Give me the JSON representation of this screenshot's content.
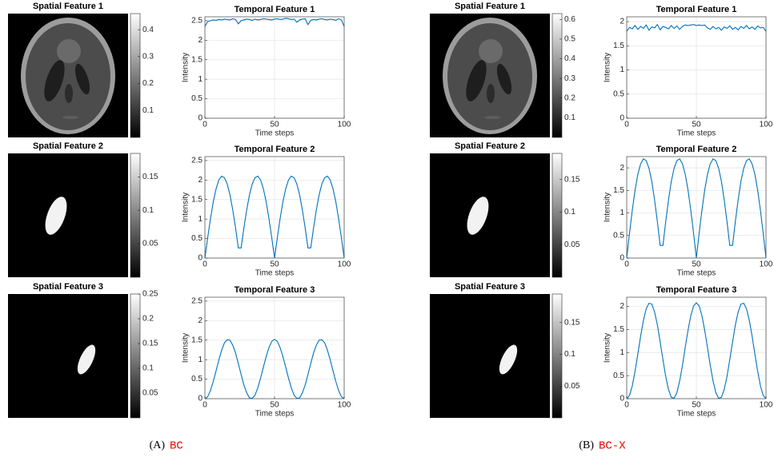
{
  "chart_data": [
    {
      "type": "image",
      "title": "Spatial Feature 1",
      "clim": [
        0,
        0.46
      ],
      "colorbar_ticks": [
        0.1,
        0.2,
        0.3,
        0.4
      ]
    },
    {
      "type": "line",
      "title": "Temporal Feature 1",
      "xlabel": "Time steps",
      "ylabel": "Intensity",
      "x": [
        0,
        2,
        4,
        6,
        8,
        10,
        12,
        14,
        16,
        18,
        20,
        22,
        24,
        26,
        28,
        30,
        32,
        34,
        36,
        38,
        40,
        42,
        44,
        46,
        48,
        50,
        52,
        54,
        56,
        58,
        60,
        62,
        64,
        66,
        68,
        70,
        72,
        74,
        76,
        78,
        80,
        82,
        84,
        86,
        88,
        90,
        92,
        94,
        96,
        98,
        100
      ],
      "series": [
        {
          "color": "#0072bd",
          "values": [
            2.35,
            2.48,
            2.5,
            2.52,
            2.51,
            2.53,
            2.52,
            2.54,
            2.53,
            2.52,
            2.55,
            2.53,
            2.42,
            2.5,
            2.52,
            2.54,
            2.53,
            2.51,
            2.54,
            2.52,
            2.53,
            2.55,
            2.54,
            2.53,
            2.52,
            2.54,
            2.55,
            2.53,
            2.54,
            2.56,
            2.55,
            2.53,
            2.54,
            2.46,
            2.52,
            2.54,
            2.55,
            2.4,
            2.51,
            2.53,
            2.52,
            2.54,
            2.55,
            2.53,
            2.52,
            2.54,
            2.53,
            2.51,
            2.55,
            2.52,
            2.35
          ]
        }
      ],
      "xlim": [
        0,
        100
      ],
      "ylim": [
        0,
        2.6
      ],
      "xticks": [
        0,
        50,
        100
      ],
      "yticks": [
        0,
        0.5,
        1,
        1.5,
        2,
        2.5
      ],
      "grid": true
    },
    {
      "type": "image",
      "title": "Spatial Feature 2",
      "clim": [
        0,
        0.185
      ],
      "colorbar_ticks": [
        0.05,
        0.1,
        0.15
      ]
    },
    {
      "type": "line",
      "title": "Temporal Feature 2",
      "xlabel": "Time steps",
      "ylabel": "Intensity",
      "x": [
        0,
        2,
        4,
        6,
        8,
        10,
        12,
        14,
        16,
        18,
        20,
        22,
        24,
        26,
        28,
        30,
        32,
        34,
        36,
        38,
        40,
        42,
        44,
        46,
        48,
        50,
        52,
        54,
        56,
        58,
        60,
        62,
        64,
        66,
        68,
        70,
        72,
        74,
        76,
        78,
        80,
        82,
        84,
        86,
        88,
        90,
        92,
        94,
        96,
        98,
        100
      ],
      "series": [
        {
          "color": "#0072bd",
          "values": [
            0,
            0.52,
            1.01,
            1.44,
            1.77,
            2.0,
            2.1,
            2.06,
            1.9,
            1.62,
            1.23,
            0.77,
            0.26,
            0.26,
            0.77,
            1.23,
            1.62,
            1.9,
            2.06,
            2.1,
            2.0,
            1.77,
            1.44,
            1.01,
            0.52,
            0,
            0.52,
            1.01,
            1.44,
            1.77,
            2.0,
            2.1,
            2.06,
            1.9,
            1.62,
            1.23,
            0.77,
            0.26,
            0.26,
            0.77,
            1.23,
            1.62,
            1.9,
            2.06,
            2.1,
            2.0,
            1.77,
            1.44,
            1.01,
            0.52,
            0
          ]
        }
      ],
      "xlim": [
        0,
        100
      ],
      "ylim": [
        0,
        2.6
      ],
      "xticks": [
        0,
        50,
        100
      ],
      "yticks": [
        0,
        0.5,
        1,
        1.5,
        2,
        2.5
      ],
      "grid": true
    },
    {
      "type": "image",
      "title": "Spatial Feature 3",
      "clim": [
        0,
        0.25
      ],
      "colorbar_ticks": [
        0.05,
        0.1,
        0.15,
        0.2,
        0.25
      ]
    },
    {
      "type": "line",
      "title": "Temporal Feature 3",
      "xlabel": "Time steps",
      "ylabel": "Intensity",
      "x": [
        0,
        2,
        4,
        6,
        8,
        10,
        12,
        14,
        16,
        18,
        20,
        22,
        24,
        26,
        28,
        30,
        32,
        34,
        36,
        38,
        40,
        42,
        44,
        46,
        48,
        50,
        52,
        54,
        56,
        58,
        60,
        62,
        64,
        66,
        68,
        70,
        72,
        74,
        76,
        78,
        80,
        82,
        84,
        86,
        88,
        90,
        92,
        94,
        96,
        98,
        100
      ],
      "series": [
        {
          "color": "#0072bd",
          "values": [
            0,
            0.05,
            0.21,
            0.44,
            0.71,
            0.99,
            1.24,
            1.43,
            1.51,
            1.5,
            1.37,
            1.17,
            0.9,
            0.62,
            0.35,
            0.15,
            0.02,
            0.01,
            0.09,
            0.28,
            0.53,
            0.81,
            1.08,
            1.31,
            1.47,
            1.52,
            1.47,
            1.31,
            1.08,
            0.81,
            0.53,
            0.28,
            0.09,
            0.01,
            0.02,
            0.15,
            0.35,
            0.62,
            0.9,
            1.17,
            1.37,
            1.5,
            1.51,
            1.43,
            1.24,
            0.99,
            0.71,
            0.44,
            0.21,
            0.05,
            0
          ]
        }
      ],
      "xlim": [
        0,
        100
      ],
      "ylim": [
        0,
        2.6
      ],
      "xticks": [
        0,
        50,
        100
      ],
      "yticks": [
        0,
        0.5,
        1,
        1.5,
        2,
        2.5
      ],
      "grid": true
    },
    {
      "type": "image",
      "title": "Spatial Feature 1",
      "clim": [
        0,
        0.63
      ],
      "colorbar_ticks": [
        0.1,
        0.2,
        0.3,
        0.4,
        0.5,
        0.6
      ]
    },
    {
      "type": "line",
      "title": "Temporal Feature 1",
      "xlabel": "Time steps",
      "ylabel": "Intensity",
      "x": [
        0,
        2,
        4,
        6,
        8,
        10,
        12,
        14,
        16,
        18,
        20,
        22,
        24,
        26,
        28,
        30,
        32,
        34,
        36,
        38,
        40,
        42,
        44,
        46,
        48,
        50,
        52,
        54,
        56,
        58,
        60,
        62,
        64,
        66,
        68,
        70,
        72,
        74,
        76,
        78,
        80,
        82,
        84,
        86,
        88,
        90,
        92,
        94,
        96,
        98,
        100
      ],
      "series": [
        {
          "color": "#0072bd",
          "values": [
            1.8,
            1.88,
            1.85,
            1.92,
            1.84,
            1.9,
            1.86,
            1.93,
            1.82,
            1.89,
            1.87,
            1.94,
            1.83,
            1.9,
            1.88,
            1.85,
            1.92,
            1.86,
            1.91,
            1.84,
            1.9,
            1.93,
            1.92,
            1.93,
            1.94,
            1.92,
            1.93,
            1.92,
            1.93,
            1.87,
            1.84,
            1.9,
            1.85,
            1.88,
            1.82,
            1.89,
            1.86,
            1.91,
            1.84,
            1.88,
            1.83,
            1.9,
            1.86,
            1.92,
            1.85,
            1.89,
            1.84,
            1.91,
            1.87,
            1.88,
            1.8
          ]
        }
      ],
      "xlim": [
        0,
        100
      ],
      "ylim": [
        0,
        2.1
      ],
      "xticks": [
        0,
        50,
        100
      ],
      "yticks": [
        0,
        0.5,
        1,
        1.5,
        2
      ],
      "grid": true
    },
    {
      "type": "image",
      "title": "Spatial Feature 2",
      "clim": [
        0,
        0.19
      ],
      "colorbar_ticks": [
        0.05,
        0.1,
        0.15
      ]
    },
    {
      "type": "line",
      "title": "Temporal Feature 2",
      "xlabel": "Time steps",
      "ylabel": "Intensity",
      "x": [
        0,
        2,
        4,
        6,
        8,
        10,
        12,
        14,
        16,
        18,
        20,
        22,
        24,
        26,
        28,
        30,
        32,
        34,
        36,
        38,
        40,
        42,
        44,
        46,
        48,
        50,
        52,
        54,
        56,
        58,
        60,
        62,
        64,
        66,
        68,
        70,
        72,
        74,
        76,
        78,
        80,
        82,
        84,
        86,
        88,
        90,
        92,
        94,
        96,
        98,
        100
      ],
      "series": [
        {
          "color": "#0072bd",
          "values": [
            0,
            0.55,
            1.06,
            1.51,
            1.86,
            2.09,
            2.2,
            2.16,
            1.99,
            1.7,
            1.29,
            0.81,
            0.28,
            0.28,
            0.81,
            1.29,
            1.7,
            1.99,
            2.16,
            2.2,
            2.09,
            1.86,
            1.51,
            1.06,
            0.55,
            0,
            0.55,
            1.06,
            1.51,
            1.86,
            2.09,
            2.2,
            2.16,
            1.99,
            1.7,
            1.29,
            0.81,
            0.28,
            0.28,
            0.81,
            1.29,
            1.7,
            1.99,
            2.16,
            2.2,
            2.09,
            1.86,
            1.51,
            1.06,
            0.55,
            0
          ]
        }
      ],
      "xlim": [
        0,
        100
      ],
      "ylim": [
        0,
        2.25
      ],
      "xticks": [
        0,
        50,
        100
      ],
      "yticks": [
        0,
        0.5,
        1,
        1.5,
        2
      ],
      "grid": true
    },
    {
      "type": "image",
      "title": "Spatial Feature 3",
      "clim": [
        0,
        0.195
      ],
      "colorbar_ticks": [
        0.05,
        0.1,
        0.15
      ]
    },
    {
      "type": "line",
      "title": "Temporal Feature 3",
      "xlabel": "Time steps",
      "ylabel": "Intensity",
      "x": [
        0,
        2,
        4,
        6,
        8,
        10,
        12,
        14,
        16,
        18,
        20,
        22,
        24,
        26,
        28,
        30,
        32,
        34,
        36,
        38,
        40,
        42,
        44,
        46,
        48,
        50,
        52,
        54,
        56,
        58,
        60,
        62,
        64,
        66,
        68,
        70,
        72,
        74,
        76,
        78,
        80,
        82,
        84,
        86,
        88,
        90,
        92,
        94,
        96,
        98,
        100
      ],
      "series": [
        {
          "color": "#0072bd",
          "values": [
            0,
            0.07,
            0.28,
            0.6,
            0.97,
            1.36,
            1.7,
            1.95,
            2.07,
            2.05,
            1.88,
            1.6,
            1.23,
            0.85,
            0.48,
            0.2,
            0.03,
            0.01,
            0.13,
            0.38,
            0.72,
            1.11,
            1.48,
            1.8,
            2.01,
            2.08,
            2.01,
            1.8,
            1.48,
            1.11,
            0.72,
            0.38,
            0.13,
            0.01,
            0.03,
            0.2,
            0.48,
            0.85,
            1.23,
            1.6,
            1.88,
            2.05,
            2.07,
            1.95,
            1.7,
            1.36,
            0.97,
            0.6,
            0.28,
            0.07,
            0
          ]
        }
      ],
      "xlim": [
        0,
        100
      ],
      "ylim": [
        0,
        2.2
      ],
      "xticks": [
        0,
        50,
        100
      ],
      "yticks": [
        0,
        0.5,
        1,
        1.5,
        2
      ],
      "grid": true
    }
  ],
  "captions": [
    {
      "label": "(A)",
      "text": "BC"
    },
    {
      "label": "(B)",
      "text": "BC-X"
    }
  ]
}
